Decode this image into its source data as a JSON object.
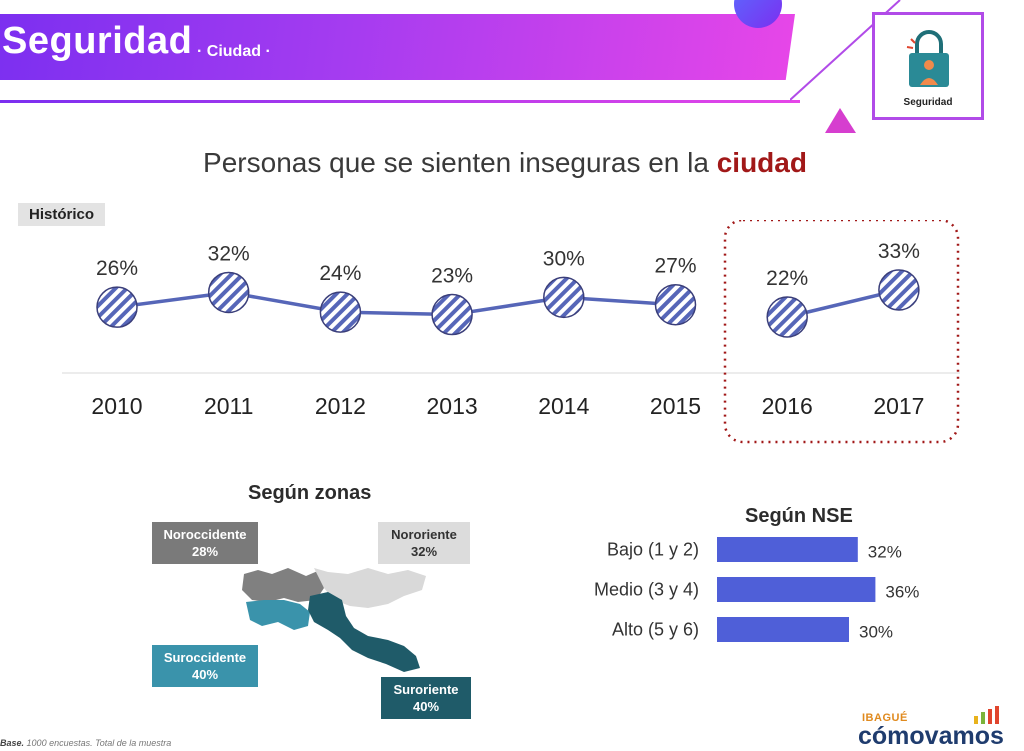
{
  "header": {
    "title": "Seguridad",
    "subtitle": "· Ciudad ·"
  },
  "badge": {
    "label": "Seguridad",
    "icon": "padlock-person-icon"
  },
  "chart_title": {
    "main": "Personas que se sienten inseguras en la",
    "highlight": "ciudad"
  },
  "historico_label": "Histórico",
  "chart_data": [
    {
      "type": "line",
      "x": [
        "2010",
        "2011",
        "2012",
        "2013",
        "2014",
        "2015",
        "2016",
        "2017"
      ],
      "values": [
        26,
        32,
        24,
        23,
        30,
        27,
        22,
        33
      ],
      "value_labels": [
        "26%",
        "32%",
        "24%",
        "23%",
        "30%",
        "27%",
        "22%",
        "33%"
      ],
      "highlighted_years": [
        "2016",
        "2017"
      ],
      "title": "",
      "series_color": "#5666b8"
    },
    {
      "type": "bar",
      "orientation": "horizontal",
      "title": "Según NSE",
      "categories": [
        "Bajo (1 y 2)",
        "Medio (3 y 4)",
        "Alto (5 y 6)"
      ],
      "values": [
        32,
        36,
        30
      ],
      "value_labels": [
        "32%",
        "36%",
        "30%"
      ],
      "bar_color": "#4f5fd8"
    }
  ],
  "zonas": {
    "title": "Según zonas",
    "zones": [
      {
        "name": "Noroccidente",
        "value": "28%",
        "color": "#7a7a7a"
      },
      {
        "name": "Nororiente",
        "value": "32%",
        "color": "#dcdcdc"
      },
      {
        "name": "Suroccidente",
        "value": "40%",
        "color": "#3a93ab"
      },
      {
        "name": "Suroriente",
        "value": "40%",
        "color": "#1f5b69"
      }
    ]
  },
  "footer": {
    "base_label": "Base.",
    "base_text": "1000 encuestas. Total de la muestra",
    "logo_top": "IBAGUÉ",
    "logo_bottom": "cómovamos"
  }
}
